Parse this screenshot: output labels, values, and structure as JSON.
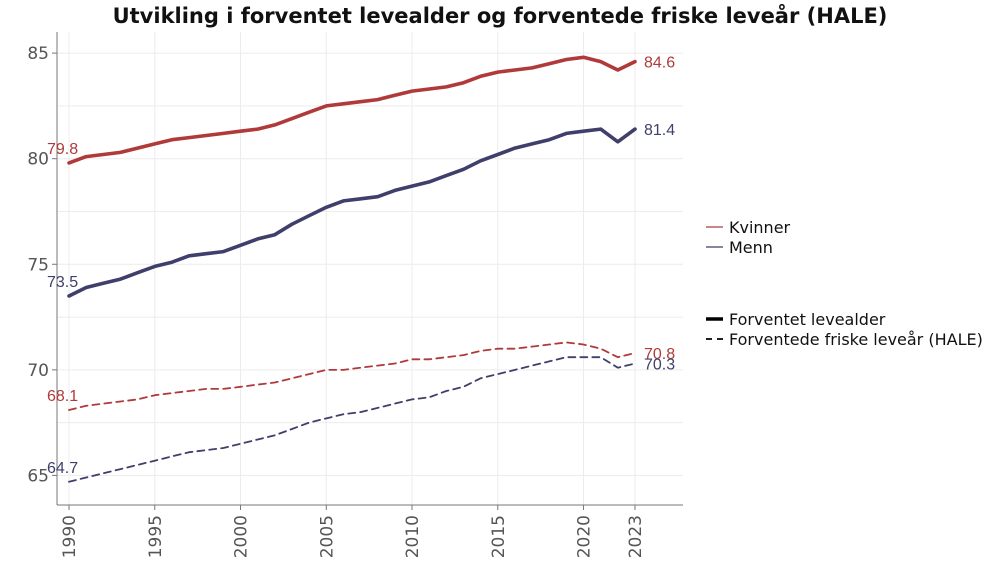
{
  "chart_data": {
    "type": "line",
    "title": "Utvikling i forventet levealder og forventede friske leveår (HALE)",
    "xlabel": "",
    "ylabel": "",
    "xlim": [
      1989.3,
      2025.8
    ],
    "ylim": [
      63.6,
      86.0
    ],
    "x_ticks": [
      "1990",
      "1995",
      "2000",
      "2005",
      "2010",
      "2015",
      "2020",
      "2023"
    ],
    "y_ticks": [
      "65",
      "70",
      "75",
      "80",
      "85"
    ],
    "grid": true,
    "legend_placement": "right",
    "legend": {
      "colors": [
        {
          "label": "Kvinner",
          "color": "#b03a3a"
        },
        {
          "label": "Menn",
          "color": "#3f3f6b"
        }
      ],
      "styles": [
        {
          "label": "Forventet levealder",
          "style": "solid"
        },
        {
          "label": "Forventede friske leveår (HALE)",
          "style": "dashed"
        }
      ]
    },
    "x": [
      1990,
      1991,
      1992,
      1993,
      1994,
      1995,
      1996,
      1997,
      1998,
      1999,
      2000,
      2001,
      2002,
      2003,
      2004,
      2005,
      2006,
      2007,
      2008,
      2009,
      2010,
      2011,
      2012,
      2013,
      2014,
      2015,
      2016,
      2017,
      2018,
      2019,
      2020,
      2021,
      2022,
      2023
    ],
    "series": [
      {
        "name": "Kvinner",
        "metric": "Forventet levealder",
        "color": "#b03a3a",
        "style": "solid",
        "values": [
          79.8,
          80.1,
          80.2,
          80.3,
          80.5,
          80.7,
          80.9,
          81.0,
          81.1,
          81.2,
          81.3,
          81.4,
          81.6,
          81.9,
          82.2,
          82.5,
          82.6,
          82.7,
          82.8,
          83.0,
          83.2,
          83.3,
          83.4,
          83.6,
          83.9,
          84.1,
          84.2,
          84.3,
          84.5,
          84.7,
          84.8,
          84.6,
          84.2,
          84.6
        ],
        "start_label": "79.8",
        "end_label": "84.6"
      },
      {
        "name": "Menn",
        "metric": "Forventet levealder",
        "color": "#3f3f6b",
        "style": "solid",
        "values": [
          73.5,
          73.9,
          74.1,
          74.3,
          74.6,
          74.9,
          75.1,
          75.4,
          75.5,
          75.6,
          75.9,
          76.2,
          76.4,
          76.9,
          77.3,
          77.7,
          78.0,
          78.1,
          78.2,
          78.5,
          78.7,
          78.9,
          79.2,
          79.5,
          79.9,
          80.2,
          80.5,
          80.7,
          80.9,
          81.2,
          81.3,
          81.4,
          80.8,
          81.4
        ],
        "start_label": "73.5",
        "end_label": "81.4"
      },
      {
        "name": "Kvinner",
        "metric": "Forventede friske leveår (HALE)",
        "color": "#b03a3a",
        "style": "dashed",
        "values": [
          68.1,
          68.3,
          68.4,
          68.5,
          68.6,
          68.8,
          68.9,
          69.0,
          69.1,
          69.1,
          69.2,
          69.3,
          69.4,
          69.6,
          69.8,
          70.0,
          70.0,
          70.1,
          70.2,
          70.3,
          70.5,
          70.5,
          70.6,
          70.7,
          70.9,
          71.0,
          71.0,
          71.1,
          71.2,
          71.3,
          71.2,
          71.0,
          70.6,
          70.8
        ],
        "start_label": "68.1",
        "end_label": "70.8"
      },
      {
        "name": "Menn",
        "metric": "Forventede friske leveår (HALE)",
        "color": "#3f3f6b",
        "style": "dashed",
        "values": [
          64.7,
          64.9,
          65.1,
          65.3,
          65.5,
          65.7,
          65.9,
          66.1,
          66.2,
          66.3,
          66.5,
          66.7,
          66.9,
          67.2,
          67.5,
          67.7,
          67.9,
          68.0,
          68.2,
          68.4,
          68.6,
          68.7,
          69.0,
          69.2,
          69.6,
          69.8,
          70.0,
          70.2,
          70.4,
          70.6,
          70.6,
          70.6,
          70.1,
          70.3
        ],
        "start_label": "64.7",
        "end_label": "70.3"
      }
    ]
  }
}
